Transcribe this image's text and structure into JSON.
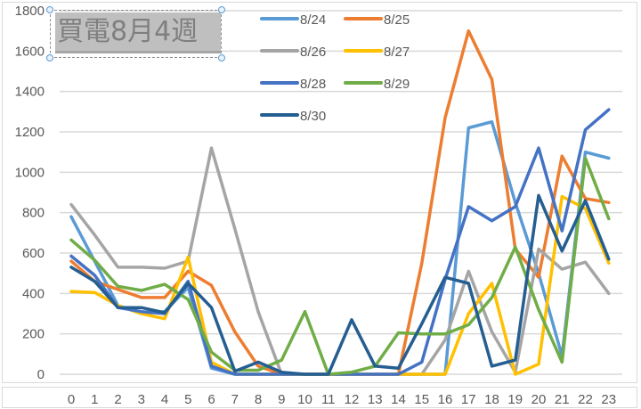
{
  "chart_data": {
    "type": "line",
    "title": "買電8月4週",
    "xlabel": "",
    "ylabel": "",
    "ylim": [
      0,
      1800
    ],
    "yticks": [
      0,
      200,
      400,
      600,
      800,
      1000,
      1200,
      1400,
      1600,
      1800
    ],
    "grid": true,
    "legend_position": "top-center",
    "x": [
      0,
      1,
      2,
      3,
      4,
      5,
      6,
      7,
      8,
      9,
      10,
      11,
      12,
      13,
      14,
      15,
      16,
      17,
      18,
      19,
      20,
      21,
      22,
      23
    ],
    "series": [
      {
        "name": "8/24",
        "color": "#5b9bd5",
        "values": [
          780,
          560,
          340,
          300,
          310,
          430,
          30,
          0,
          0,
          0,
          0,
          0,
          0,
          0,
          0,
          0,
          0,
          1220,
          1250,
          850,
          500,
          90,
          1100,
          1070
        ]
      },
      {
        "name": "8/25",
        "color": "#ed7d31",
        "values": [
          560,
          460,
          420,
          380,
          380,
          510,
          440,
          210,
          40,
          0,
          0,
          0,
          0,
          0,
          0,
          550,
          1270,
          1700,
          1460,
          620,
          480,
          1080,
          870,
          850
        ]
      },
      {
        "name": "8/26",
        "color": "#a5a5a5",
        "values": [
          840,
          690,
          530,
          530,
          525,
          560,
          1120,
          720,
          310,
          0,
          0,
          0,
          0,
          0,
          0,
          0,
          170,
          510,
          210,
          10,
          620,
          520,
          555,
          400
        ]
      },
      {
        "name": "8/27",
        "color": "#ffc000",
        "values": [
          410,
          405,
          340,
          300,
          275,
          580,
          60,
          0,
          0,
          0,
          0,
          0,
          0,
          0,
          0,
          0,
          0,
          300,
          450,
          0,
          50,
          880,
          820,
          550
        ]
      },
      {
        "name": "8/28",
        "color": "#4472c4",
        "values": [
          585,
          490,
          330,
          310,
          300,
          460,
          40,
          0,
          0,
          0,
          0,
          0,
          0,
          0,
          0,
          60,
          470,
          830,
          760,
          830,
          1120,
          710,
          1210,
          1310
        ]
      },
      {
        "name": "8/29",
        "color": "#70ad47",
        "values": [
          665,
          565,
          435,
          415,
          445,
          370,
          110,
          20,
          20,
          70,
          310,
          0,
          10,
          40,
          205,
          200,
          200,
          245,
          380,
          630,
          320,
          60,
          1070,
          770
        ]
      },
      {
        "name": "8/30",
        "color": "#255e91",
        "values": [
          530,
          460,
          330,
          330,
          305,
          450,
          330,
          15,
          60,
          10,
          0,
          0,
          270,
          40,
          30,
          250,
          480,
          450,
          40,
          70,
          885,
          610,
          860,
          570
        ]
      }
    ]
  },
  "title": {
    "text": "買電8月4週"
  },
  "legend": [
    {
      "label": "8/24"
    },
    {
      "label": "8/25"
    },
    {
      "label": "8/26"
    },
    {
      "label": "8/27"
    },
    {
      "label": "8/28"
    },
    {
      "label": "8/29"
    },
    {
      "label": "8/30"
    }
  ]
}
